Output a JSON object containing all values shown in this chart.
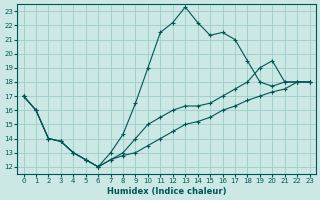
{
  "xlabel": "Humidex (Indice chaleur)",
  "bg_color": "#cce8e4",
  "grid_color": "#99cccc",
  "line_color": "#005555",
  "xlim": [
    -0.5,
    23.5
  ],
  "ylim": [
    11.5,
    23.5
  ],
  "xticks": [
    0,
    1,
    2,
    3,
    4,
    5,
    6,
    7,
    8,
    9,
    10,
    11,
    12,
    13,
    14,
    15,
    16,
    17,
    18,
    19,
    20,
    21,
    22,
    23
  ],
  "yticks": [
    12,
    13,
    14,
    15,
    16,
    17,
    18,
    19,
    20,
    21,
    22,
    23
  ],
  "x": [
    0,
    1,
    2,
    3,
    4,
    5,
    6,
    7,
    8,
    9,
    10,
    11,
    12,
    13,
    14,
    15,
    16,
    17,
    18,
    19,
    20,
    21,
    22,
    23
  ],
  "y_top": [
    17.0,
    16.0,
    14.0,
    13.8,
    13.0,
    12.5,
    12.0,
    13.0,
    14.3,
    16.5,
    19.0,
    21.5,
    22.2,
    23.3,
    22.2,
    21.3,
    21.5,
    21.0,
    19.5,
    18.0,
    17.7,
    18.0,
    18.0,
    18.0
  ],
  "y_mid": [
    17.0,
    16.0,
    14.0,
    13.8,
    13.0,
    12.5,
    12.0,
    12.5,
    13.0,
    14.0,
    15.0,
    15.5,
    16.0,
    16.3,
    16.3,
    16.5,
    17.0,
    17.5,
    18.0,
    19.0,
    19.5,
    18.0,
    18.0,
    18.0
  ],
  "y_bot": [
    17.0,
    16.0,
    14.0,
    13.8,
    13.0,
    12.5,
    12.0,
    12.5,
    12.8,
    13.0,
    13.5,
    14.0,
    14.5,
    15.0,
    15.2,
    15.5,
    16.0,
    16.3,
    16.7,
    17.0,
    17.3,
    17.5,
    18.0,
    18.0
  ]
}
